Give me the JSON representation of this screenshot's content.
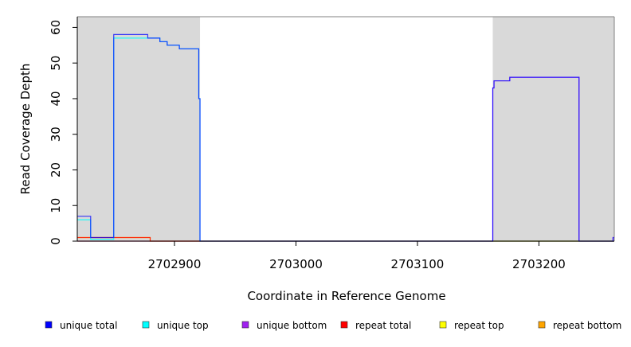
{
  "chart_data": {
    "type": "line",
    "title": "",
    "xlabel": "Coordinate in Reference Genome",
    "ylabel": "Read Coverage Depth",
    "xlim": [
      2702820,
      2703262
    ],
    "ylim": [
      0,
      63
    ],
    "xticks": [
      2702900,
      2703000,
      2703100,
      2703200
    ],
    "yticks": [
      0,
      10,
      20,
      30,
      40,
      50,
      60
    ],
    "grid": false,
    "shaded_regions": [
      {
        "x0": 2702820,
        "x1": 2702921,
        "color": "#d9d9d9"
      },
      {
        "x0": 2703162,
        "x1": 2703262,
        "color": "#d9d9d9"
      }
    ],
    "legend_position": "bottom",
    "series": [
      {
        "name": "unique total",
        "color": "#0000ff",
        "x": [
          2702820,
          2702831,
          2702831,
          2702850,
          2702850,
          2702878,
          2702878,
          2702888,
          2702888,
          2702894,
          2702894,
          2702904,
          2702904,
          2702920,
          2702920,
          2702921,
          2702921,
          2703162,
          2703162,
          2703163,
          2703163,
          2703176,
          2703176,
          2703233,
          2703233,
          2703261,
          2703261,
          2703262
        ],
        "y": [
          7,
          7,
          1,
          1,
          58,
          58,
          57,
          57,
          56,
          56,
          55,
          55,
          54,
          54,
          40,
          40,
          0,
          0,
          43,
          43,
          45,
          45,
          46,
          46,
          0,
          0,
          1,
          1
        ]
      },
      {
        "name": "unique top",
        "color": "#00ffff",
        "x": [
          2702820,
          2702831,
          2702831,
          2702850,
          2702850,
          2702878,
          2702878,
          2702888,
          2702888,
          2702894,
          2702894,
          2702904,
          2702904,
          2702920,
          2702920,
          2702921,
          2702921,
          2703262
        ],
        "y": [
          6,
          6,
          0.5,
          0.5,
          57,
          57,
          57,
          57,
          56,
          56,
          55,
          55,
          54,
          54,
          40,
          40,
          0,
          0
        ]
      },
      {
        "name": "unique bottom",
        "color": "#a020f0",
        "x": [
          2702820,
          2703162,
          2703162,
          2703163,
          2703163,
          2703176,
          2703176,
          2703233,
          2703233,
          2703261,
          2703261,
          2703262
        ],
        "y": [
          0,
          0,
          43,
          43,
          45,
          45,
          46,
          46,
          0,
          0,
          1,
          1
        ]
      },
      {
        "name": "repeat total",
        "color": "#ff0000",
        "x": [
          2702820,
          2702880,
          2702880,
          2703262
        ],
        "y": [
          1,
          1,
          0,
          0
        ]
      },
      {
        "name": "repeat top",
        "color": "#ffff00",
        "x": [
          2702820,
          2702880,
          2702880,
          2703262
        ],
        "y": [
          1,
          1,
          0,
          0
        ]
      },
      {
        "name": "repeat bottom",
        "color": "#ffa500",
        "x": [
          2702820,
          2703262
        ],
        "y": [
          0,
          0
        ]
      }
    ]
  }
}
